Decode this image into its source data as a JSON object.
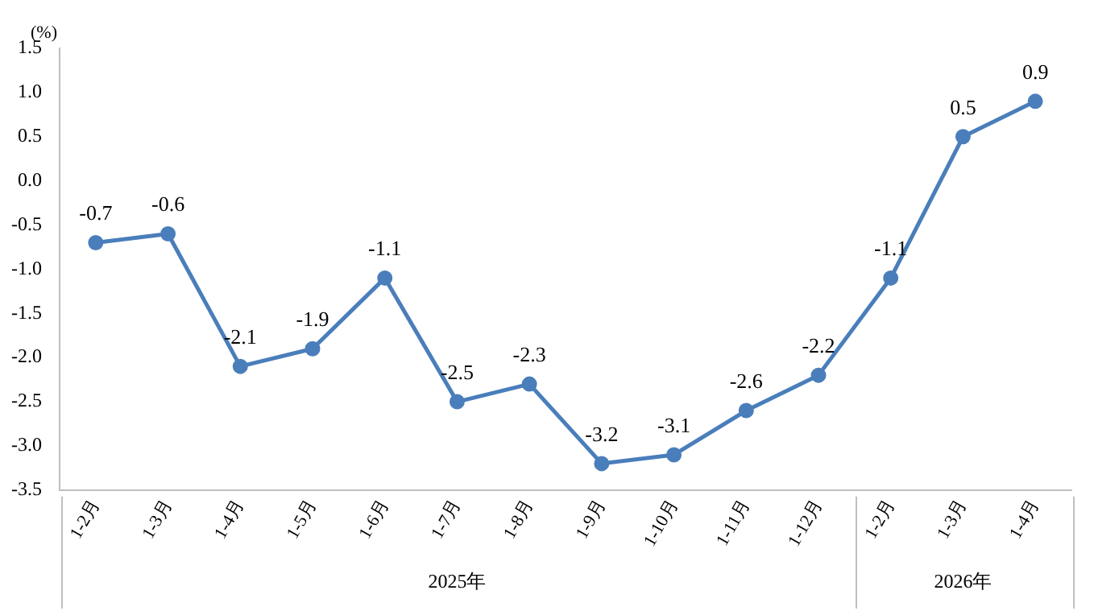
{
  "chart_data": {
    "type": "line",
    "ylabel": "(%)",
    "categories": [
      "1-2月",
      "1-3月",
      "1-4月",
      "1-5月",
      "1-6月",
      "1-7月",
      "1-8月",
      "1-9月",
      "1-10月",
      "1-11月",
      "1-12月",
      "1-2月",
      "1-3月",
      "1-4月"
    ],
    "series": [
      {
        "color": "#4a7ebb",
        "values": [
          -0.7,
          -0.6,
          -2.1,
          -1.9,
          -1.1,
          -2.5,
          -2.3,
          -3.2,
          -3.1,
          -2.6,
          -2.2,
          -1.1,
          0.5,
          0.9
        ]
      }
    ],
    "ylim": [
      -3.5,
      1.5
    ],
    "yticks": [
      {
        "value": -3.5,
        "label": "-3.5"
      },
      {
        "value": -3,
        "label": "-3.0"
      },
      {
        "value": -2.5,
        "label": "-2.5"
      },
      {
        "value": -2,
        "label": "-2.0"
      },
      {
        "value": -1.5,
        "label": "-1.5"
      },
      {
        "value": -1,
        "label": "-1.0"
      },
      {
        "value": -0.5,
        "label": "-0.5"
      },
      {
        "value": 0,
        "label": "0.0"
      },
      {
        "value": 0.5,
        "label": "0.5"
      },
      {
        "value": 1,
        "label": "1.0"
      },
      {
        "value": 1.5,
        "label": "1.5"
      }
    ],
    "annotations": [
      "2025年",
      "2026年"
    ],
    "grid": false,
    "legend": false,
    "marker": "circle",
    "line_style": "solid",
    "data_labels": true
  }
}
